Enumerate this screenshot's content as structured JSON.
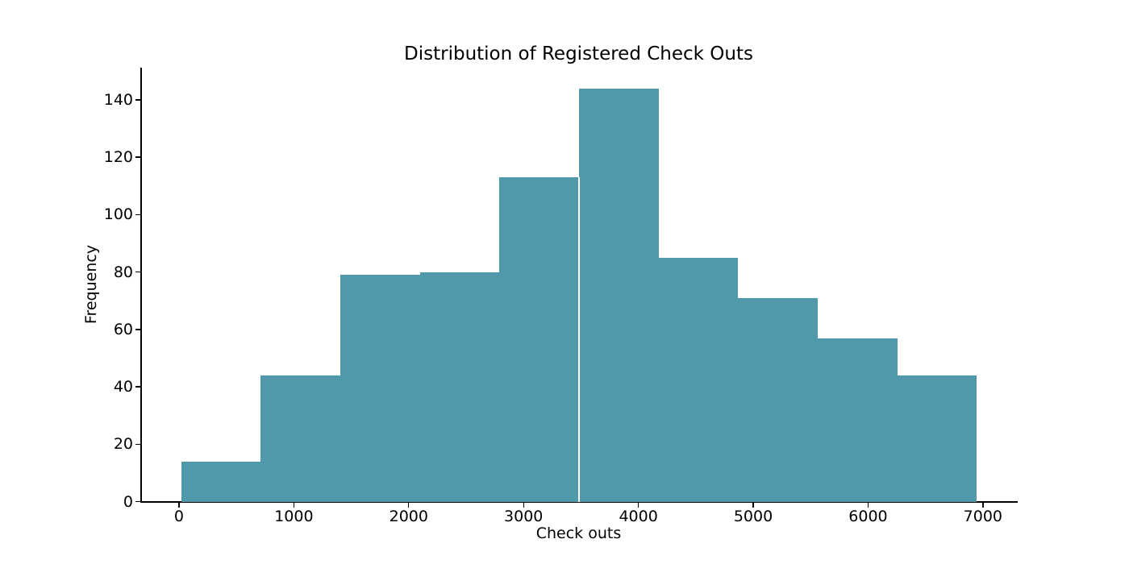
{
  "figure": {
    "background": "#ffffff",
    "text_color": "#000000"
  },
  "chart_data": {
    "type": "histogram",
    "title": "Distribution of Registered Check Outs",
    "xlabel": "Check outs",
    "ylabel": "Frequency",
    "bar_color": "#4f99ab",
    "bin_edges": [
      20.0,
      712.6,
      1405.2,
      2097.8,
      2790.4,
      3483.0,
      4175.6,
      4868.2,
      5560.8,
      6253.4,
      6946.0
    ],
    "counts": [
      14,
      44,
      79,
      80,
      113,
      144,
      85,
      71,
      57,
      44
    ],
    "xticks": [
      0,
      1000,
      2000,
      3000,
      4000,
      5000,
      6000,
      7000
    ],
    "yticks": [
      0,
      20,
      40,
      60,
      80,
      100,
      120,
      140
    ],
    "xlim": [
      -326.3,
      7292.3
    ],
    "ylim": [
      0,
      151.2
    ],
    "grid": false,
    "spines": [
      "left",
      "bottom"
    ],
    "white_divider_x": 3483.0
  }
}
